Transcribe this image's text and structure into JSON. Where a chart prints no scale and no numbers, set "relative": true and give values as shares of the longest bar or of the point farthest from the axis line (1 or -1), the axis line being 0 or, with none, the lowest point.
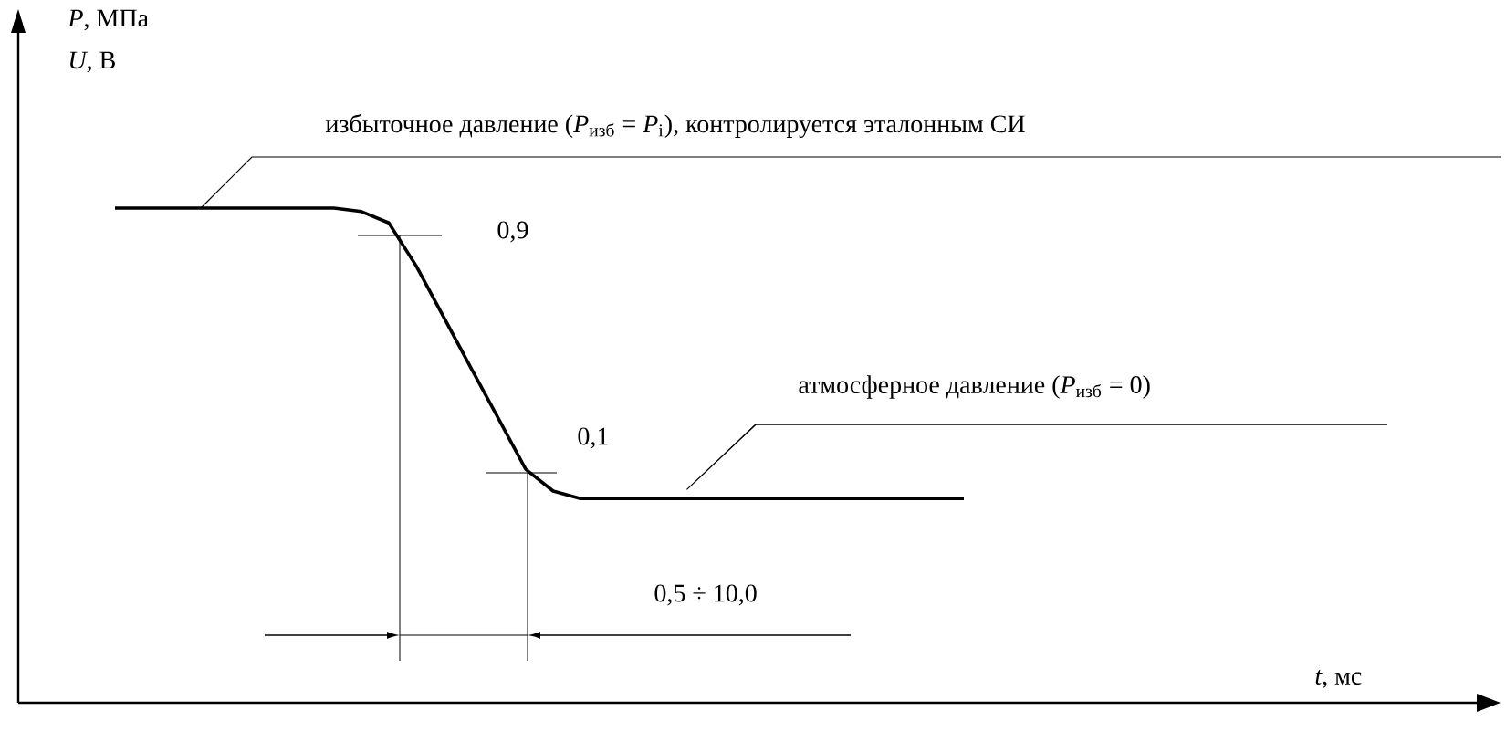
{
  "chart_data": {
    "type": "line",
    "relative": true,
    "color": "#000000",
    "categories": [
      null,
      null,
      null,
      null,
      null,
      null,
      null,
      null,
      null,
      null,
      null,
      null,
      null,
      null,
      null,
      null,
      null,
      null,
      null,
      null,
      null,
      null,
      null,
      null,
      null,
      null,
      null,
      null,
      null,
      null,
      null,
      null
    ],
    "values": [
      1,
      1,
      1,
      1,
      1,
      1,
      1,
      1,
      1,
      0.993,
      0.97,
      0.883,
      0.78,
      0.677,
      0.575,
      0.472,
      0.428,
      0.413,
      0.413,
      0.413,
      0.413,
      0.413,
      0.413,
      0.413,
      0.413,
      0.413,
      0.413,
      0.413,
      0.413,
      0.413,
      0.413,
      0.413
    ],
    "annotations": [
      "*U*, В",
      "*P*, МПа",
      "*t*, мс",
      "избыточное давление (*P*$_{изб}$ = *P*$_{i}$), контролируется эталонным СИ",
      "0,9",
      "0,1",
      "атмосферное давление (*P*$_{изб}$ = 0)",
      "0,5 ÷ 10,0"
    ]
  }
}
